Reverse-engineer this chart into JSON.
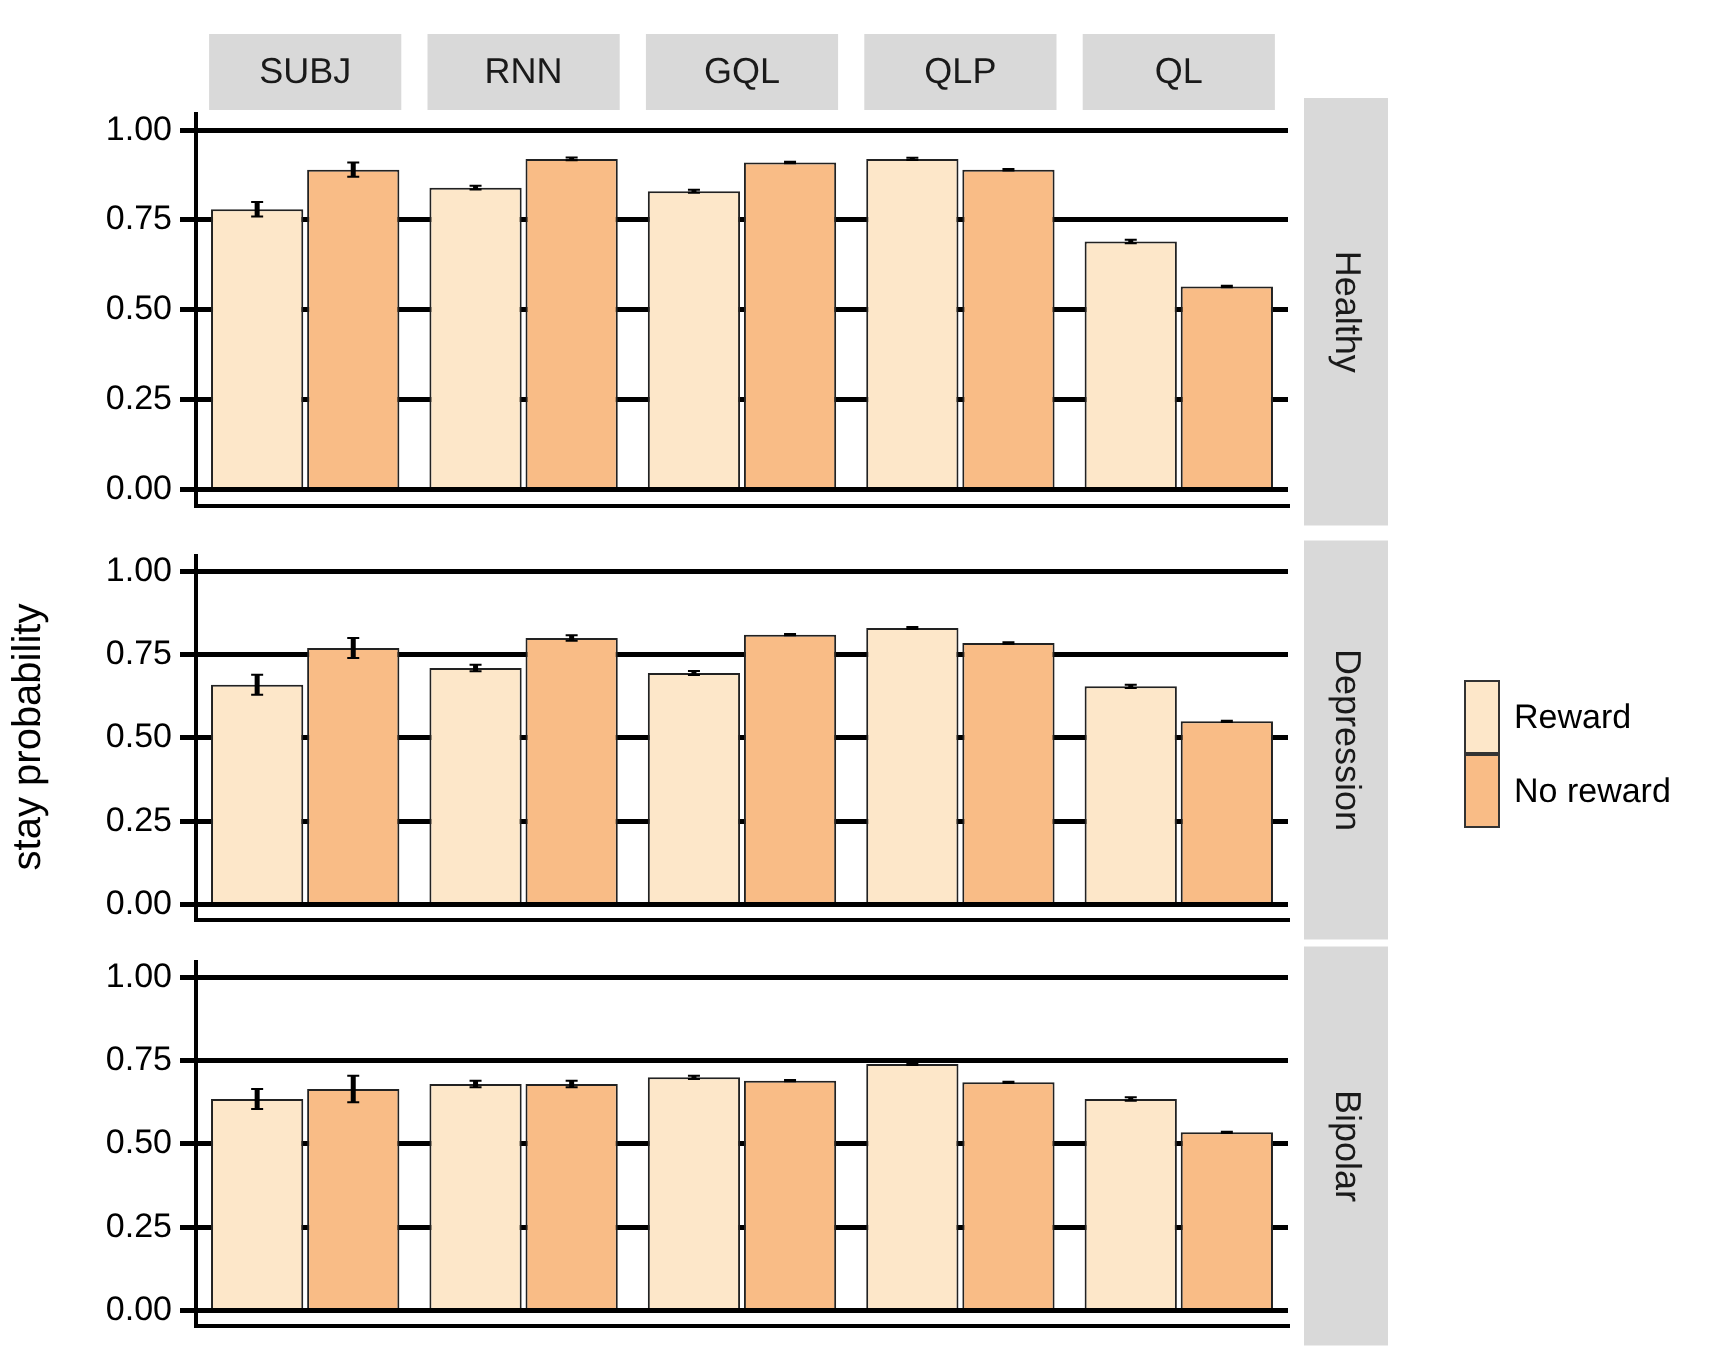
{
  "chart_data": [
    {
      "type": "bar",
      "y2label": "Healthy",
      "categories": [
        "SUBJ",
        "RNN",
        "GQL",
        "QLP",
        "QL"
      ],
      "ylim": [
        -0.045,
        1.045
      ],
      "yticks": [
        {
          "value": 0,
          "label": "0.00"
        },
        {
          "value": 0.25,
          "label": "0.25"
        },
        {
          "value": 0.5,
          "label": "0.50"
        },
        {
          "value": 0.75,
          "label": "0.75"
        },
        {
          "value": 1,
          "label": "1.00"
        }
      ],
      "grid": "y",
      "series": [
        {
          "color": "#fde7c9",
          "values": [
            0.78,
            0.84,
            0.83,
            0.92,
            0.69
          ],
          "errors": [
            0.02,
            0.005,
            0.004,
            0.003,
            0.005
          ]
        },
        {
          "color": "#f9bc86",
          "values": [
            0.89,
            0.92,
            0.91,
            0.89,
            0.565
          ],
          "errors": [
            0.02,
            0.004,
            0.002,
            0.002,
            0.002
          ]
        }
      ]
    },
    {
      "type": "bar",
      "y2label": "Depression",
      "ylabel": "stay probability",
      "legend": "right",
      "categories": [
        null,
        null,
        null,
        null,
        null
      ],
      "ylim": [
        -0.045,
        1.045
      ],
      "yticks": [
        {
          "value": 0,
          "label": "0.00"
        },
        {
          "value": 0.25,
          "label": "0.25"
        },
        {
          "value": 0.5,
          "label": "0.50"
        },
        {
          "value": 0.75,
          "label": "0.75"
        },
        {
          "value": 1,
          "label": "1.00"
        }
      ],
      "grid": "y",
      "tick_labels": "y",
      "series": [
        {
          "name": "Reward",
          "color": "#fde7c9",
          "values": [
            0.66,
            0.71,
            0.695,
            0.83,
            0.655
          ],
          "errors": [
            0.03,
            0.01,
            0.006,
            0.003,
            0.005
          ]
        },
        {
          "name": "No reward",
          "color": "#f9bc86",
          "values": [
            0.77,
            0.8,
            0.81,
            0.785,
            0.55
          ],
          "errors": [
            0.03,
            0.008,
            0.002,
            0.002,
            0.002
          ]
        }
      ]
    },
    {
      "type": "bar",
      "y2label": "Bipolar",
      "categories": [
        null,
        null,
        null,
        null,
        null
      ],
      "ylim": [
        -0.045,
        1.045
      ],
      "yticks": [
        {
          "value": 0,
          "label": "0.00"
        },
        {
          "value": 0.25,
          "label": "0.25"
        },
        {
          "value": 0.5,
          "label": "0.50"
        },
        {
          "value": 0.75,
          "label": "0.75"
        },
        {
          "value": 1,
          "label": "1.00"
        }
      ],
      "grid": "y",
      "tick_labels": "y",
      "series": [
        {
          "color": "#fde7c9",
          "values": [
            0.635,
            0.68,
            0.7,
            0.74,
            0.635
          ],
          "errors": [
            0.03,
            0.01,
            0.005,
            0.003,
            0.005
          ]
        },
        {
          "color": "#f9bc86",
          "values": [
            0.665,
            0.68,
            0.69,
            0.685,
            0.535
          ],
          "errors": [
            0.04,
            0.01,
            0.002,
            0.002,
            0.002
          ]
        }
      ]
    }
  ]
}
